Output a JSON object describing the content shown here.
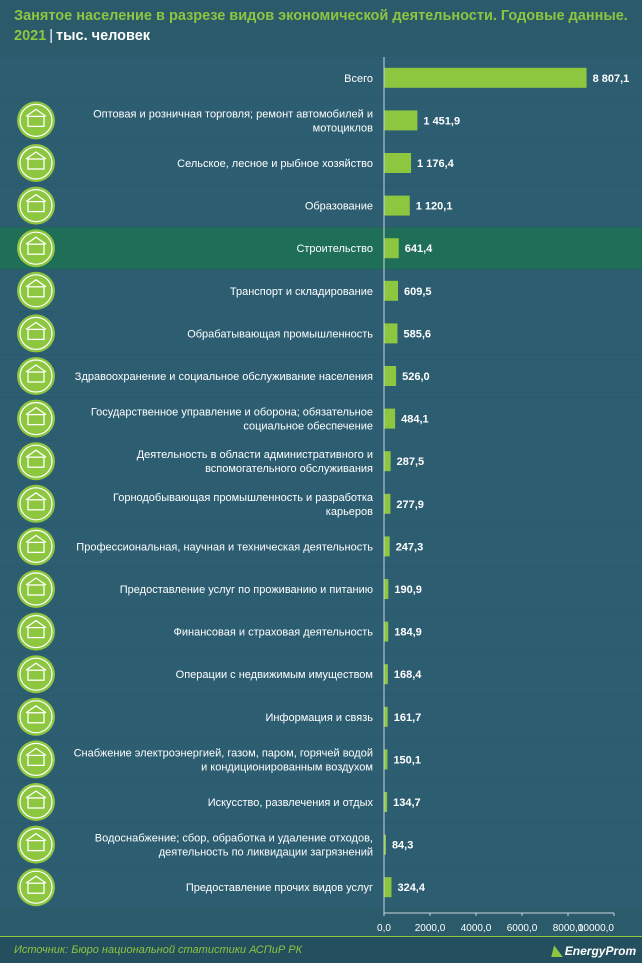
{
  "title": "Занятое население в разрезе видов экономической деятельности. Годовые данные.",
  "year": "2021",
  "separator": "|",
  "unit": "тыс. человек",
  "source": "Источник: Бюро национальной статистики АСПиР РК",
  "logo": "EnergyProm",
  "colors": {
    "background": "#2b5a6b",
    "bar": "#8dc63f",
    "highlight_row": "#1e6e58",
    "title": "#8dc63f"
  },
  "chart_data": {
    "type": "bar",
    "orientation": "horizontal",
    "categories": [
      "Всего",
      "Оптовая и розничная торговля; ремонт автомобилей и мотоциклов",
      "Сельское, лесное и рыбное хозяйство",
      "Образование",
      "Строительство",
      "Транспорт и складирование",
      "Обрабатывающая промышленность",
      "Здравоохранение и социальное обслуживание населения",
      "Государственное управление и оборона; обязательное социальное обеспечение",
      "Деятельность в области административного и вспомогательного обслуживания",
      "Горнодобывающая промышленность и разработка карьеров",
      "Профессиональная, научная и техническая деятельность",
      "Предоставление услуг по проживанию и питанию",
      "Финансовая и страховая деятельность",
      "Операции с недвижимым имуществом",
      "Информация и связь",
      "Снабжение электроэнергией, газом, паром, горячей водой и кондиционированным воздухом",
      "Искусство, развлечения и отдых",
      "Водоснабжение; сбор, обработка и удаление отходов, деятельность по ликвидации загрязнений",
      "Предоставление прочих видов услуг"
    ],
    "category_lines": [
      [
        "Всего"
      ],
      [
        "Оптовая и розничная торговля; ремонт автомобилей и",
        "мотоциклов"
      ],
      [
        "Сельское, лесное и рыбное хозяйство"
      ],
      [
        "Образование"
      ],
      [
        "Строительство"
      ],
      [
        "Транспорт и складирование"
      ],
      [
        "Обрабатывающая промышленность"
      ],
      [
        "Здравоохранение и социальное обслуживание населения"
      ],
      [
        "Государственное управление и оборона; обязательное",
        "социальное обеспечение"
      ],
      [
        "Деятельность в области административного и",
        "вспомогательного обслуживания"
      ],
      [
        "Горнодобывающая промышленность и разработка",
        "карьеров"
      ],
      [
        "Профессиональная, научная и техническая деятельность"
      ],
      [
        "Предоставление услуг по проживанию и питанию"
      ],
      [
        "Финансовая и страховая деятельность"
      ],
      [
        "Операции с недвижимым имуществом"
      ],
      [
        "Информация и связь"
      ],
      [
        "Снабжение электроэнергией, газом, паром, горячей водой",
        "и кондиционированным воздухом"
      ],
      [
        "Искусство, развлечения и отдых"
      ],
      [
        "Водоснабжение; сбор, обработка и удаление отходов,",
        "деятельность по ликвидации загрязнений"
      ],
      [
        "Предоставление прочих видов услуг"
      ]
    ],
    "values": [
      8807.1,
      1451.9,
      1176.4,
      1120.1,
      641.4,
      609.5,
      585.6,
      526.0,
      484.1,
      287.5,
      277.9,
      247.3,
      190.9,
      184.9,
      168.4,
      161.7,
      150.1,
      134.7,
      84.3,
      324.4
    ],
    "value_labels": [
      "8 807,1",
      "1 451,9",
      "1 176,4",
      "1 120,1",
      "641,4",
      "609,5",
      "585,6",
      "526,0",
      "484,1",
      "287,5",
      "277,9",
      "247,3",
      "190,9",
      "184,9",
      "168,4",
      "161,7",
      "150,1",
      "134,7",
      "84,3",
      "324,4"
    ],
    "highlight_index": 4,
    "icons": [
      null,
      "globe-cart-icon",
      "farm-barn-icon",
      "graduation-cap-icon",
      "crane-building-icon",
      "truck-warehouse-icon",
      "factory-icon",
      "health-cup-icon",
      "government-building-icon",
      "admin-office-icon",
      "mining-pickaxe-icon",
      "science-gear-icon",
      "hotel-dining-icon",
      "coins-dollar-icon",
      "house-hand-icon",
      "communication-globe-icon",
      "power-house-icon",
      "art-palette-icon",
      "water-pipe-icon",
      "handshake-icon"
    ],
    "xlim": [
      0,
      10000
    ],
    "xticks": [
      0,
      2000,
      4000,
      6000,
      8000,
      10000
    ],
    "xtick_labels": [
      "0,0",
      "2000,0",
      "4000,0",
      "6000,0",
      "8000,0",
      "10000,0"
    ],
    "grid": false
  }
}
